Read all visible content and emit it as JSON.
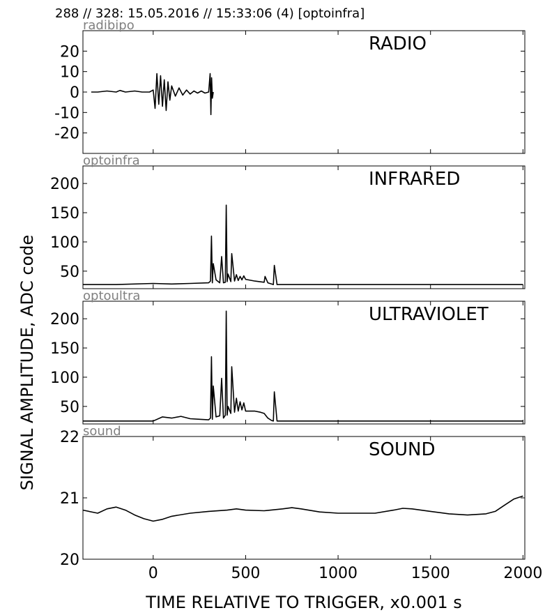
{
  "header": {
    "text": "288 // 328:   15.05.2016 // 15:33:06 (4)  [optoinfra]"
  },
  "ylabel": "SIGNAL AMPLITUDE,  ADC code",
  "xlabel": "TIME RELATIVE TO TRIGGER,   x0.001 s",
  "x_axis": {
    "min": -380,
    "max": 2010,
    "ticks": [
      0,
      500,
      1000,
      1500,
      2000
    ],
    "tick_labels": [
      "0",
      "500",
      "1000",
      "1500",
      "2000"
    ]
  },
  "colors": {
    "trace": "#000000",
    "corner_label": "#808080",
    "axes": "#000000"
  },
  "chart_data": [
    {
      "type": "line",
      "corner_label": "radibipo",
      "title": "RADIO",
      "xlim": [
        -380,
        2010
      ],
      "ylim": [
        -30,
        30
      ],
      "yticks": [
        20,
        10,
        0,
        -10,
        -20
      ],
      "ytick_labels": [
        "20",
        "10",
        "0",
        "-10",
        "-20"
      ],
      "x": [
        -335,
        -300,
        -250,
        -200,
        -180,
        -150,
        -100,
        -60,
        -20,
        0,
        10,
        20,
        30,
        40,
        50,
        60,
        70,
        80,
        90,
        100,
        120,
        140,
        160,
        180,
        200,
        220,
        240,
        260,
        280,
        300,
        308,
        312,
        316,
        320,
        325
      ],
      "y": [
        0,
        0,
        0.5,
        0,
        0.8,
        0,
        0.5,
        0,
        0,
        1,
        -8,
        9,
        -6,
        8,
        -7,
        6,
        -9,
        5,
        -4,
        3,
        -2,
        2,
        -1.5,
        1,
        -1,
        0.5,
        -0.5,
        0.5,
        -0.5,
        0,
        9,
        -11,
        7,
        -3,
        0
      ]
    },
    {
      "type": "line",
      "corner_label": "optoinfra",
      "title": "INFRARED",
      "xlim": [
        -380,
        2010
      ],
      "ylim": [
        20,
        230
      ],
      "yticks": [
        200,
        150,
        100,
        50
      ],
      "ytick_labels": [
        "200",
        "150",
        "100",
        "50"
      ],
      "x": [
        -380,
        -200,
        0,
        100,
        200,
        300,
        310,
        315,
        320,
        325,
        340,
        360,
        370,
        380,
        390,
        395,
        400,
        405,
        420,
        425,
        440,
        450,
        460,
        470,
        480,
        490,
        500,
        550,
        600,
        605,
        620,
        640,
        650,
        655,
        670,
        700,
        800,
        1000,
        1200,
        1400,
        1600,
        1800,
        2000
      ],
      "y": [
        27,
        27,
        29,
        28,
        29,
        30,
        33,
        110,
        30,
        63,
        35,
        30,
        75,
        30,
        31,
        163,
        32,
        45,
        32,
        80,
        33,
        44,
        34,
        41,
        35,
        42,
        36,
        33,
        31,
        41,
        30,
        28,
        27,
        60,
        27,
        27,
        27,
        27,
        27,
        27,
        27,
        27,
        27
      ]
    },
    {
      "type": "line",
      "corner_label": "optoultra",
      "title": "ULTRAVIOLET",
      "xlim": [
        -380,
        2010
      ],
      "ylim": [
        20,
        230
      ],
      "yticks": [
        200,
        150,
        100,
        50
      ],
      "ytick_labels": [
        "200",
        "150",
        "100",
        "50"
      ],
      "x": [
        -380,
        -100,
        0,
        50,
        100,
        150,
        200,
        250,
        300,
        310,
        315,
        320,
        325,
        340,
        360,
        370,
        380,
        390,
        395,
        400,
        405,
        420,
        425,
        440,
        450,
        460,
        470,
        480,
        490,
        500,
        550,
        580,
        600,
        620,
        640,
        650,
        655,
        670,
        700,
        800,
        1000,
        1200,
        1400,
        1600,
        1800,
        2000
      ],
      "y": [
        25,
        25,
        25,
        32,
        30,
        33,
        29,
        28,
        27,
        30,
        135,
        28,
        85,
        32,
        34,
        98,
        30,
        35,
        213,
        35,
        50,
        38,
        118,
        40,
        64,
        42,
        58,
        44,
        56,
        42,
        42,
        40,
        38,
        30,
        26,
        25,
        75,
        25,
        25,
        25,
        25,
        25,
        25,
        25,
        25,
        25
      ]
    },
    {
      "type": "line",
      "corner_label": "sound",
      "title": "SOUND",
      "xlim": [
        -380,
        2010
      ],
      "ylim": [
        20,
        22
      ],
      "yticks": [
        22,
        21,
        20
      ],
      "ytick_labels": [
        "22",
        "21",
        "20"
      ],
      "x": [
        -380,
        -300,
        -250,
        -200,
        -150,
        -100,
        -50,
        0,
        50,
        100,
        200,
        300,
        400,
        450,
        500,
        600,
        700,
        750,
        800,
        900,
        1000,
        1100,
        1200,
        1300,
        1350,
        1400,
        1500,
        1600,
        1700,
        1800,
        1850,
        1900,
        1950,
        2000
      ],
      "y": [
        20.8,
        20.75,
        20.82,
        20.85,
        20.8,
        20.72,
        20.66,
        20.62,
        20.65,
        20.7,
        20.75,
        20.78,
        20.8,
        20.82,
        20.8,
        20.79,
        20.82,
        20.84,
        20.82,
        20.77,
        20.75,
        20.75,
        20.75,
        20.8,
        20.83,
        20.82,
        20.78,
        20.74,
        20.72,
        20.74,
        20.78,
        20.88,
        20.98,
        21.03
      ]
    }
  ]
}
